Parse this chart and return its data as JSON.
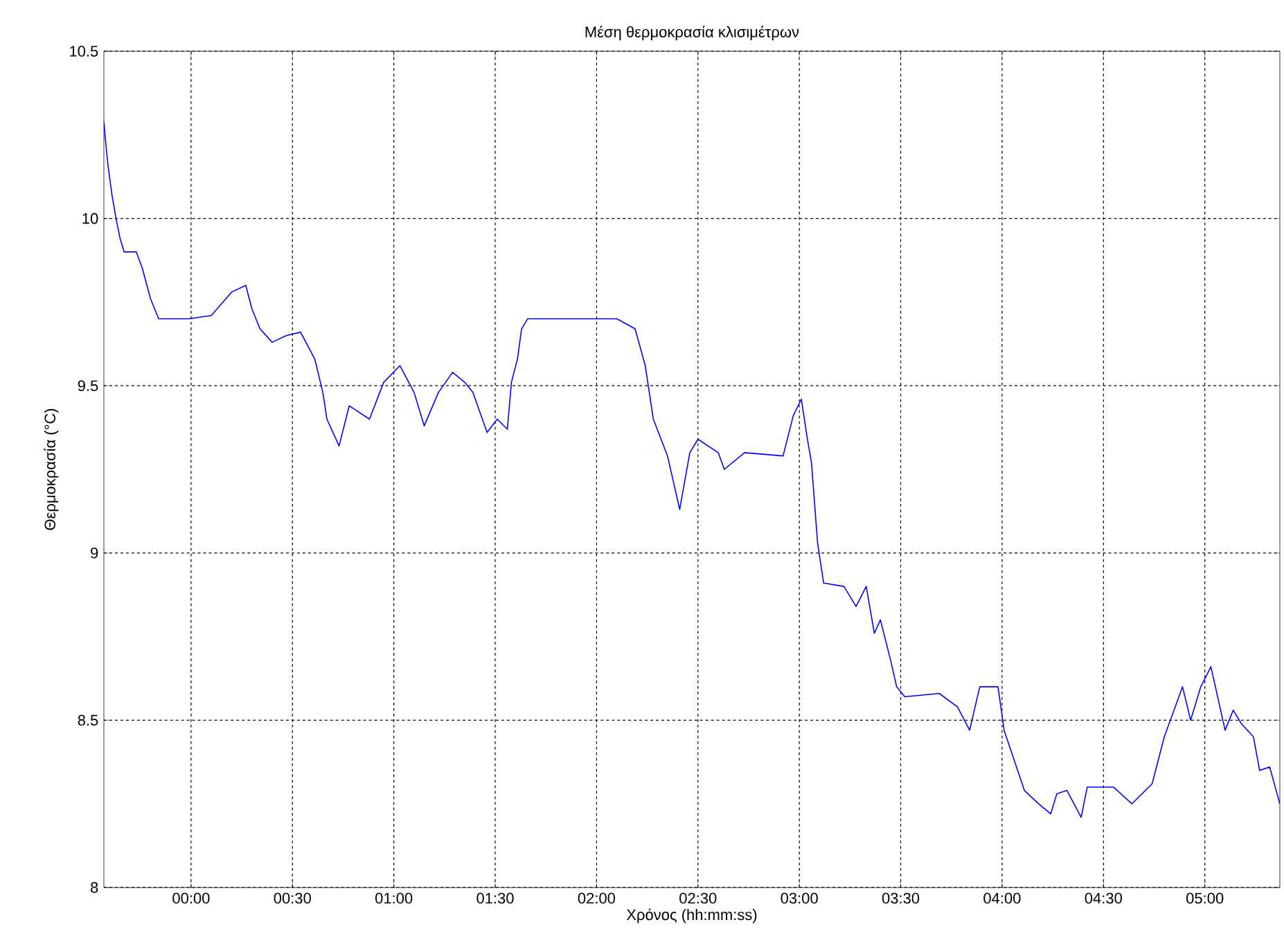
{
  "chart_data": {
    "type": "line",
    "title": "Μέση θερμοκρασία κλισιμέτρων",
    "xlabel": "Χρόνος (hh:mm:ss)",
    "ylabel": "Θερμοκρασία (°C)",
    "x": [
      -0.43,
      -0.42,
      -0.41,
      -0.39,
      -0.37,
      -0.35,
      -0.33,
      -0.27,
      -0.24,
      -0.2,
      -0.16,
      -0.01,
      0.1,
      0.2,
      0.27,
      0.3,
      0.34,
      0.4,
      0.47,
      0.54,
      0.61,
      0.65,
      0.67,
      0.73,
      0.78,
      0.88,
      0.95,
      1.03,
      1.1,
      1.15,
      1.22,
      1.29,
      1.35,
      1.39,
      1.46,
      1.51,
      1.56,
      1.58,
      1.61,
      1.63,
      1.66,
      2.1,
      2.19,
      2.24,
      2.28,
      2.35,
      2.41,
      2.46,
      2.5,
      2.6,
      2.63,
      2.73,
      2.92,
      2.97,
      3.01,
      3.04,
      3.06,
      3.09,
      3.12,
      3.22,
      3.28,
      3.33,
      3.37,
      3.4,
      3.45,
      3.48,
      3.52,
      3.69,
      3.78,
      3.84,
      3.89,
      3.98,
      4.01,
      4.11,
      4.18,
      4.24,
      4.27,
      4.32,
      4.39,
      4.42,
      4.55,
      4.64,
      4.74,
      4.8,
      4.89,
      4.93,
      4.98,
      5.03,
      5.1,
      5.14,
      5.18,
      5.24,
      5.27,
      5.32,
      5.37
    ],
    "series": [
      {
        "color": "#0000ff",
        "values": [
          10.29,
          10.22,
          10.16,
          10.07,
          10.0,
          9.94,
          9.9,
          9.9,
          9.85,
          9.76,
          9.7,
          9.7,
          9.71,
          9.78,
          9.8,
          9.73,
          9.67,
          9.63,
          9.65,
          9.66,
          9.58,
          9.48,
          9.4,
          9.32,
          9.44,
          9.4,
          9.51,
          9.56,
          9.48,
          9.38,
          9.48,
          9.54,
          9.51,
          9.48,
          9.36,
          9.4,
          9.37,
          9.51,
          9.58,
          9.67,
          9.7,
          9.7,
          9.67,
          9.56,
          9.4,
          9.29,
          9.13,
          9.3,
          9.34,
          9.3,
          9.25,
          9.3,
          9.29,
          9.41,
          9.46,
          9.34,
          9.27,
          9.03,
          8.91,
          8.9,
          8.84,
          8.9,
          8.76,
          8.8,
          8.68,
          8.6,
          8.57,
          8.58,
          8.54,
          8.47,
          8.6,
          8.6,
          8.47,
          8.29,
          8.25,
          8.22,
          8.28,
          8.29,
          8.21,
          8.3,
          8.3,
          8.25,
          8.31,
          8.45,
          8.6,
          8.5,
          8.6,
          8.66,
          8.47,
          8.53,
          8.49,
          8.45,
          8.35,
          8.36,
          8.25
        ]
      }
    ],
    "xlim": [
      -0.43,
      5.37
    ],
    "ylim": [
      8,
      10.5
    ],
    "xticks": [
      {
        "value": 0,
        "label": "00:00"
      },
      {
        "value": 0.5,
        "label": "00:30"
      },
      {
        "value": 1,
        "label": "01:00"
      },
      {
        "value": 1.5,
        "label": "01:30"
      },
      {
        "value": 2,
        "label": "02:00"
      },
      {
        "value": 2.5,
        "label": "02:30"
      },
      {
        "value": 3,
        "label": "03:00"
      },
      {
        "value": 3.5,
        "label": "03:30"
      },
      {
        "value": 4,
        "label": "04:00"
      },
      {
        "value": 4.5,
        "label": "04:30"
      },
      {
        "value": 5,
        "label": "05:00"
      }
    ],
    "yticks": [
      8,
      8.5,
      9,
      9.5,
      10,
      10.5
    ],
    "grid": true,
    "marker": "none",
    "line_style": "solid"
  }
}
